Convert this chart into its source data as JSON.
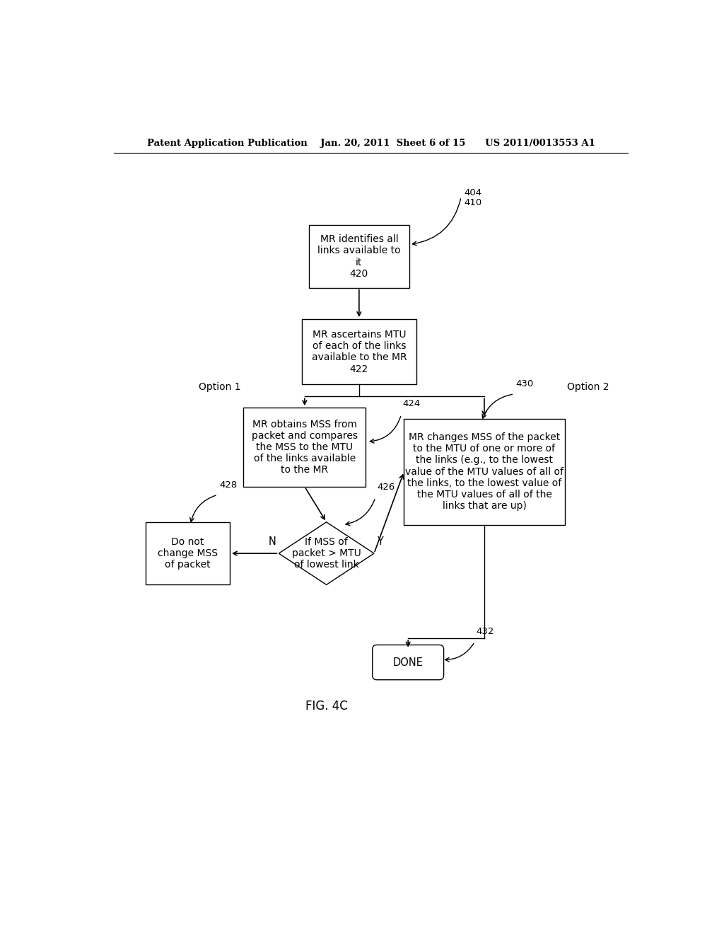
{
  "header": "Patent Application Publication    Jan. 20, 2011  Sheet 6 of 15      US 2011/0013553 A1",
  "fig_label": "FIG. 4C",
  "background_color": "#ffffff",
  "box410_text": "MR identifies all\nlinks available to\nit\n420",
  "box422_text": "MR ascertains MTU\nof each of the links\navailable to the MR\n422",
  "box424_text": "MR obtains MSS from\npacket and compares\nthe MSS to the MTU\nof the links available\nto the MR",
  "diamond426_text": "If MSS of\npacket > MTU\nof lowest link",
  "box428_text": "Do not\nchange MSS\nof packet",
  "box430_text": "MR changes MSS of the packet\nto the MTU of one or more of\nthe links (e.g., to the lowest\nvalue of the MTU values of all of\nthe links, to the lowest value of\nthe MTU values of all of the\nlinks that are up)",
  "done_text": "DONE",
  "label404": "404",
  "label410": "410",
  "label424": "424",
  "label426": "426",
  "label428": "428",
  "label430": "430",
  "label432": "432",
  "option1": "Option 1",
  "option2": "Option 2",
  "N_label": "N",
  "Y_label": "Y"
}
